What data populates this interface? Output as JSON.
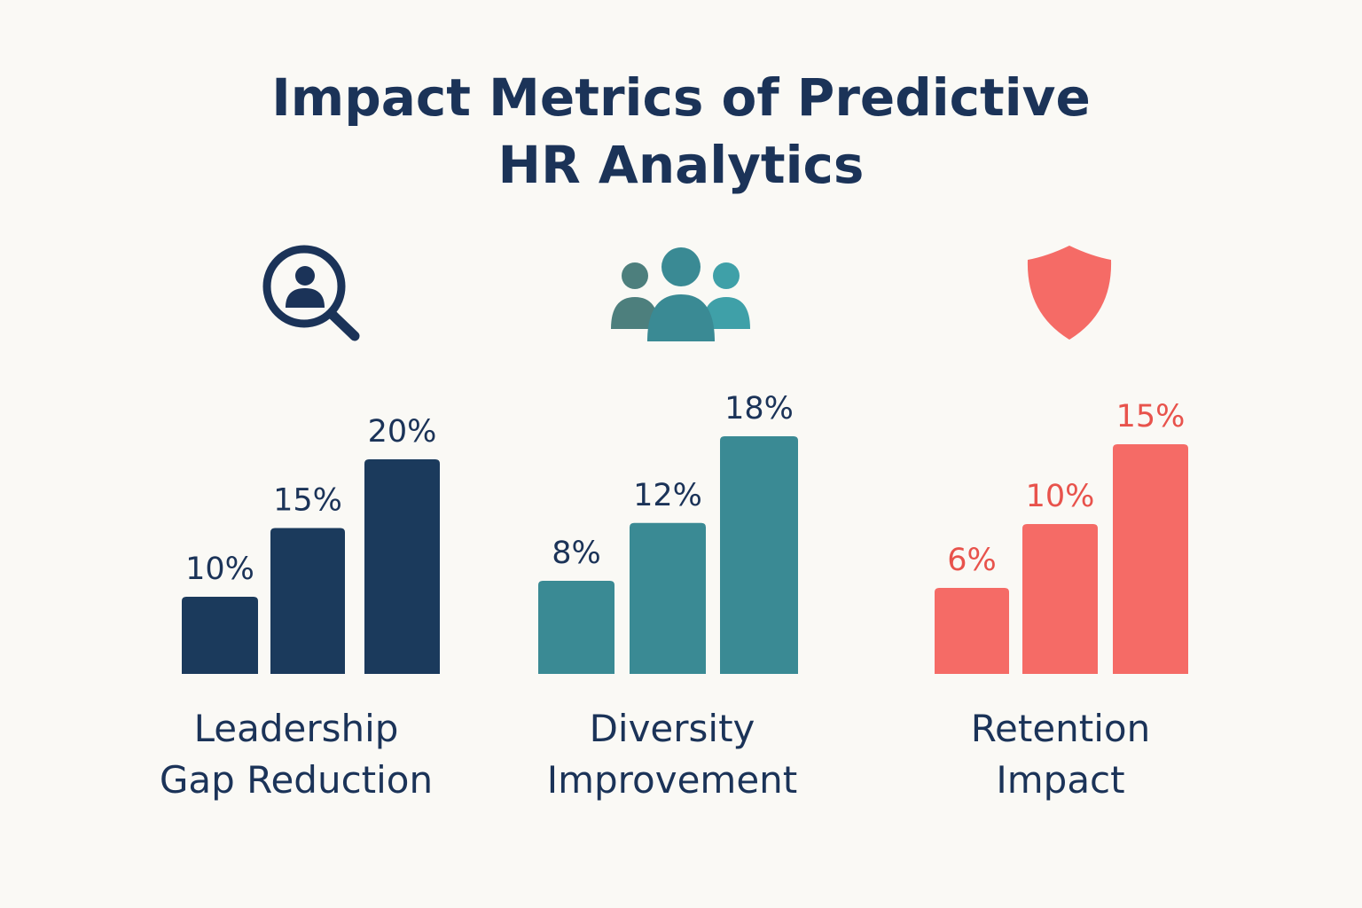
{
  "chart_data": {
    "type": "bar",
    "title": "Impact Metrics of Predictive HR Analytics",
    "title_lines": [
      "Impact Metrics of Predictive",
      "HR Analytics"
    ],
    "unit": "%",
    "groups": [
      {
        "name_lines": [
          "Leadership",
          "Gap Reduction"
        ],
        "values": [
          10,
          15,
          20
        ],
        "labels": [
          "10%",
          "15%",
          "20%"
        ],
        "color": "#1b3a5c",
        "label_color": "#1b3358",
        "icon": "magnifier-person-icon"
      },
      {
        "name_lines": [
          "Diversity",
          "Improvement"
        ],
        "values": [
          8,
          12,
          18
        ],
        "labels": [
          "8%",
          "12%",
          "18%"
        ],
        "color": "#3a8a94",
        "label_color": "#1b3358",
        "icon": "people-group-icon"
      },
      {
        "name_lines": [
          "Retention",
          "Impact"
        ],
        "values": [
          6,
          10,
          15
        ],
        "labels": [
          "6%",
          "10%",
          "15%"
        ],
        "color": "#f56b66",
        "label_color": "#e8534c",
        "icon": "shield-icon"
      }
    ],
    "grid": false,
    "legend": "none"
  }
}
